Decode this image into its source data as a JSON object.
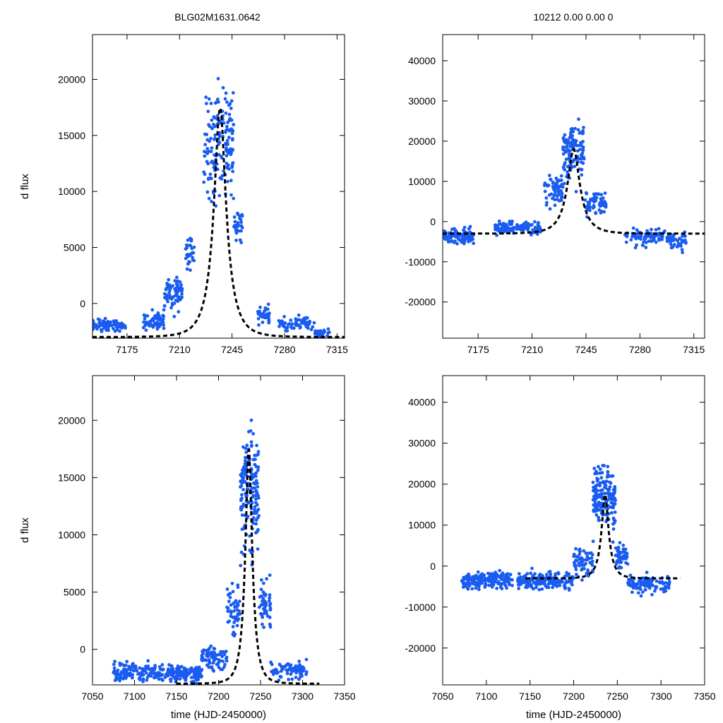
{
  "figure": {
    "title_left": "BLG02M1631.0642",
    "title_right": "10212  0.00  0.00  0"
  },
  "colors": {
    "points": "#1a5cf0",
    "fit": "#000000",
    "frame": "#000000"
  },
  "chart_data": [
    {
      "id": "top-left",
      "type": "scatter",
      "title": "BLG02M1631.0642",
      "xlabel": "",
      "ylabel": "d flux",
      "xlim": [
        7152,
        7320
      ],
      "ylim": [
        -3100,
        24000
      ],
      "xticks": [
        7175,
        7210,
        7245,
        7280,
        7315
      ],
      "yticks": [
        0,
        5000,
        10000,
        15000,
        20000
      ],
      "xtick_labels": [
        "7175",
        "7210",
        "7245",
        "7280",
        "7315"
      ],
      "ytick_labels": [
        "0",
        "5000",
        "10000",
        "15000",
        "20000"
      ],
      "model": {
        "type": "dashed-line",
        "t0": 7237,
        "peak": 17500,
        "baseline": -3000,
        "tE": 11
      },
      "series": [
        {
          "name": "data",
          "segments": [
            {
              "x": [
                7152,
                7174
              ],
              "base": -2000,
              "scatter": 600,
              "n": 90
            },
            {
              "x": [
                7186,
                7200
              ],
              "base": -1500,
              "scatter": 900,
              "n": 60
            },
            {
              "x": [
                7200,
                7212
              ],
              "base": 1000,
              "scatter": 1500,
              "n": 70
            },
            {
              "x": [
                7214,
                7220
              ],
              "base": 4500,
              "scatter": 1800,
              "n": 30
            },
            {
              "x": [
                7226,
                7246
              ],
              "base": 14000,
              "scatter": 5500,
              "n": 160
            },
            {
              "x": [
                7246,
                7252
              ],
              "base": 7000,
              "scatter": 1500,
              "n": 30
            },
            {
              "x": [
                7262,
                7270
              ],
              "base": -1000,
              "scatter": 900,
              "n": 40
            },
            {
              "x": [
                7275,
                7300
              ],
              "base": -1800,
              "scatter": 700,
              "n": 60
            },
            {
              "x": [
                7300,
                7310
              ],
              "base": -2600,
              "scatter": 300,
              "n": 25
            }
          ]
        }
      ]
    },
    {
      "id": "top-right",
      "type": "scatter",
      "title": "10212  0.00  0.00  0",
      "xlabel": "",
      "ylabel": "",
      "xlim": [
        7152,
        7322
      ],
      "ylim": [
        -29000,
        46500
      ],
      "xticks": [
        7175,
        7210,
        7245,
        7280,
        7315
      ],
      "yticks": [
        -20000,
        -10000,
        0,
        10000,
        20000,
        30000,
        40000
      ],
      "xtick_labels": [
        "7175",
        "7210",
        "7245",
        "7280",
        "7315"
      ],
      "ytick_labels": [
        "-20000",
        "-10000",
        "0",
        "10000",
        "20000",
        "30000",
        "40000"
      ],
      "model": {
        "type": "dashed-line",
        "t0": 7237,
        "peak": 18000,
        "baseline": -3000,
        "tE": 11
      },
      "series": [
        {
          "name": "data",
          "segments": [
            {
              "x": [
                7152,
                7172
              ],
              "base": -3500,
              "scatter": 1800,
              "n": 110
            },
            {
              "x": [
                7186,
                7216
              ],
              "base": -1500,
              "scatter": 1800,
              "n": 110
            },
            {
              "x": [
                7218,
                7230
              ],
              "base": 8000,
              "scatter": 4000,
              "n": 60
            },
            {
              "x": [
                7230,
                7244
              ],
              "base": 18000,
              "scatter": 7000,
              "n": 120
            },
            {
              "x": [
                7244,
                7258
              ],
              "base": 5000,
              "scatter": 3000,
              "n": 60
            },
            {
              "x": [
                7270,
                7300
              ],
              "base": -4000,
              "scatter": 2000,
              "n": 90
            },
            {
              "x": [
                7300,
                7310
              ],
              "base": -5000,
              "scatter": 2500,
              "n": 30
            }
          ]
        }
      ]
    },
    {
      "id": "bottom-left",
      "type": "scatter",
      "title": "",
      "xlabel": "time (HJD-2450000)",
      "ylabel": "d flux",
      "xlim": [
        7050,
        7350
      ],
      "ylim": [
        -3100,
        23900
      ],
      "xticks": [
        7050,
        7100,
        7150,
        7200,
        7250,
        7300,
        7350
      ],
      "yticks": [
        0,
        5000,
        10000,
        15000,
        20000
      ],
      "xtick_labels": [
        "7050",
        "7100",
        "7150",
        "7200",
        "7250",
        "7300",
        "7350"
      ],
      "ytick_labels": [
        "0",
        "5000",
        "10000",
        "15000",
        "20000"
      ],
      "model": {
        "type": "dashed-line",
        "t0": 7236,
        "peak": 17500,
        "baseline": -3000,
        "tE": 11,
        "x_start": 7150,
        "x_end": 7320
      },
      "series": [
        {
          "name": "data",
          "segments": [
            {
              "x": [
                7075,
                7145
              ],
              "base": -2000,
              "scatter": 900,
              "n": 160
            },
            {
              "x": [
                7145,
                7180
              ],
              "base": -2100,
              "scatter": 700,
              "n": 110
            },
            {
              "x": [
                7180,
                7210
              ],
              "base": -700,
              "scatter": 1100,
              "n": 80
            },
            {
              "x": [
                7210,
                7226
              ],
              "base": 3500,
              "scatter": 2200,
              "n": 50
            },
            {
              "x": [
                7226,
                7248
              ],
              "base": 14000,
              "scatter": 5500,
              "n": 170
            },
            {
              "x": [
                7248,
                7262
              ],
              "base": 4000,
              "scatter": 2000,
              "n": 50
            },
            {
              "x": [
                7262,
                7305
              ],
              "base": -1800,
              "scatter": 800,
              "n": 80
            }
          ]
        }
      ]
    },
    {
      "id": "bottom-right",
      "type": "scatter",
      "title": "",
      "xlabel": "time (HJD-2450000)",
      "ylabel": "",
      "xlim": [
        7050,
        7350
      ],
      "ylim": [
        -29000,
        46500
      ],
      "xticks": [
        7050,
        7100,
        7150,
        7200,
        7250,
        7300,
        7350
      ],
      "yticks": [
        -20000,
        -10000,
        0,
        10000,
        20000,
        30000,
        40000
      ],
      "xtick_labels": [
        "7050",
        "7100",
        "7150",
        "7200",
        "7250",
        "7300",
        "7350"
      ],
      "ytick_labels": [
        "-20000",
        "-10000",
        "0",
        "10000",
        "20000",
        "30000",
        "40000"
      ],
      "model": {
        "type": "dashed-line",
        "t0": 7236,
        "peak": 17500,
        "baseline": -3000,
        "tE": 11,
        "x_start": 7145,
        "x_end": 7322
      },
      "series": [
        {
          "name": "data",
          "segments": [
            {
              "x": [
                7072,
                7130
              ],
              "base": -3500,
              "scatter": 2000,
              "n": 170
            },
            {
              "x": [
                7135,
                7200
              ],
              "base": -3500,
              "scatter": 2200,
              "n": 180
            },
            {
              "x": [
                7200,
                7222
              ],
              "base": 1000,
              "scatter": 3500,
              "n": 60
            },
            {
              "x": [
                7222,
                7248
              ],
              "base": 17000,
              "scatter": 8000,
              "n": 170
            },
            {
              "x": [
                7248,
                7262
              ],
              "base": 3000,
              "scatter": 3000,
              "n": 50
            },
            {
              "x": [
                7262,
                7310
              ],
              "base": -4500,
              "scatter": 2200,
              "n": 110
            }
          ]
        }
      ]
    }
  ]
}
